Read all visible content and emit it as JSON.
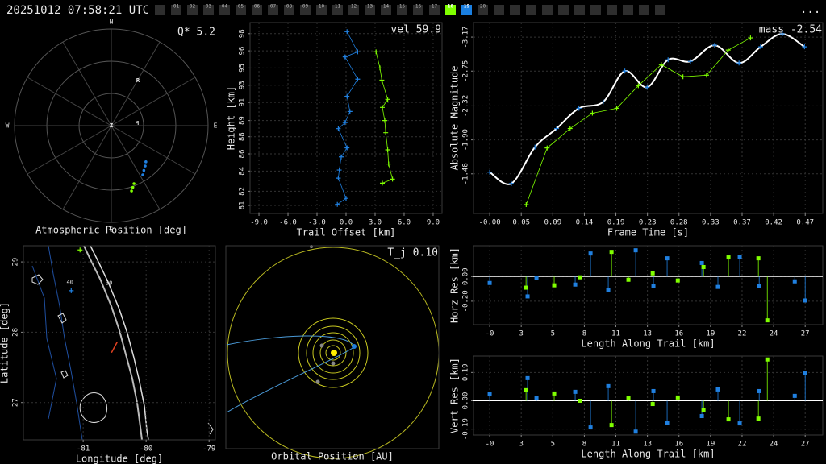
{
  "header": {
    "timestamp": "20251012 07:58:21 UTC",
    "frames": [
      "01",
      "02",
      "03",
      "04",
      "05",
      "06",
      "07",
      "08",
      "09",
      "10",
      "11",
      "12",
      "13",
      "14",
      "15",
      "16",
      "17",
      "18",
      "19",
      "20"
    ],
    "empty_before": 1,
    "empty_after": 11,
    "active_index": 17,
    "active_color": "#80ff00",
    "selected_index": 18,
    "selected_color": "#1a7fe0",
    "menu": "..."
  },
  "chart_data": [
    {
      "type": "polar",
      "title": "Atmospheric Position [deg]",
      "annotation": "Q*  5.2",
      "rlim": [
        0,
        90
      ],
      "rings": [
        30,
        60,
        90
      ],
      "spokes": 12,
      "cardinals": [
        "N",
        "E",
        "S",
        "W"
      ],
      "markers": [
        {
          "label": "Z",
          "az": 0,
          "zd": 0
        },
        {
          "label": "R",
          "az": 30.5,
          "zd": 48.7
        },
        {
          "label": "M",
          "az": 84.6,
          "zd": 24
        }
      ],
      "series": [
        {
          "color": "#2080e0",
          "az": [
            136.3,
            140,
            144,
            147.4
          ],
          "zd": [
            46.5,
            49,
            51.5,
            54.3
          ]
        },
        {
          "color": "#80ff00",
          "az": [
            158.7,
            160.8,
            162.8
          ],
          "zd": [
            58,
            60.8,
            63.6
          ]
        }
      ]
    },
    {
      "type": "line",
      "xlabel": "Trail Offset [km]",
      "ylabel": "Height [km]",
      "annotation": "vel 59.9",
      "xlim": [
        -9.92,
        9.92
      ],
      "ylim": [
        80.2,
        99.1
      ],
      "xticks": [
        {
          "value": -9,
          "label": "-9.0"
        },
        {
          "value": -6,
          "label": "-6.0"
        },
        {
          "value": -3,
          "label": "-3.0"
        },
        {
          "value": 0,
          "label": "0.0"
        },
        {
          "value": 3,
          "label": "3.0"
        },
        {
          "value": 6,
          "label": "6.0"
        },
        {
          "value": 9,
          "label": "9.0"
        }
      ],
      "yticks": [
        81,
        {
          "value": 82.4,
          "label": "82"
        },
        {
          "value": 84.4,
          "label": "84"
        },
        {
          "value": 86.1,
          "label": "86"
        },
        {
          "value": 87.8,
          "label": "88"
        },
        {
          "value": 89.4,
          "label": "89"
        },
        {
          "value": 91.2,
          "label": "91"
        },
        {
          "value": 92.9,
          "label": "93"
        },
        {
          "value": 94.6,
          "label": "95"
        },
        {
          "value": 96.3,
          "label": "96"
        },
        98
      ],
      "grid": true,
      "series": [
        {
          "color": "#2080e0",
          "line": true,
          "x": [
            0.1,
            1.2,
            -0.1,
            1.2,
            0.1,
            0.4,
            -0.1,
            -0.8,
            0.1,
            -0.5,
            -0.7,
            -0.8,
            0.0,
            -0.9
          ],
          "y": [
            98.2,
            96.2,
            95.7,
            93.5,
            91.8,
            90.3,
            89.2,
            88.6,
            86.7,
            85.8,
            84.5,
            83.7,
            81.7,
            81.1
          ]
        },
        {
          "color": "#80ff00",
          "line": true,
          "x": [
            3.1,
            3.5,
            3.7,
            4.3,
            3.75,
            4.0,
            4.1,
            4.3,
            4.4,
            4.8,
            3.75
          ],
          "y": [
            96.2,
            94.6,
            93.4,
            91.5,
            90.7,
            89.4,
            88.2,
            86.5,
            85.1,
            83.6,
            83.2
          ]
        }
      ]
    },
    {
      "type": "line",
      "xlabel": "Frame Time [s]",
      "ylabel": "Absolute Magnitude",
      "annotation": "mass -2.54",
      "xlim": [
        -0.024,
        0.493
      ],
      "ylim": [
        -0.99,
        -3.35
      ],
      "xticks": [
        {
          "value": 0,
          "label": "-0.00"
        },
        {
          "value": 0.0467,
          "label": "0.05"
        },
        {
          "value": 0.0934,
          "label": "0.09"
        },
        {
          "value": 0.1401,
          "label": "0.14"
        },
        {
          "value": 0.1868,
          "label": "0.19"
        },
        {
          "value": 0.2335,
          "label": "0.23"
        },
        {
          "value": 0.2802,
          "label": "0.28"
        },
        {
          "value": 0.3269,
          "label": "0.33"
        },
        {
          "value": 0.3736,
          "label": "0.37"
        },
        {
          "value": 0.4203,
          "label": "0.42"
        },
        {
          "value": 0.467,
          "label": "0.47"
        }
      ],
      "yticks": [
        -1.48,
        {
          "value": -1.9,
          "label": "-1.90"
        },
        -2.32,
        -2.75,
        -3.17
      ],
      "grid": true,
      "series": [
        {
          "color": "#2080e0",
          "line": false,
          "fit_color": "#ffffff",
          "x": [
            0,
            0.032,
            0.067,
            0.099,
            0.132,
            0.168,
            0.2,
            0.233,
            0.264,
            0.297,
            0.333,
            0.369,
            0.401,
            0.433,
            0.466
          ],
          "y": [
            -1.5,
            -1.36,
            -1.81,
            -2.04,
            -2.29,
            -2.37,
            -2.75,
            -2.55,
            -2.89,
            -2.87,
            -3.07,
            -2.85,
            -3.05,
            -3.21,
            -3.05
          ]
        },
        {
          "color": "#80ff00",
          "line": true,
          "x": [
            0.054,
            0.085,
            0.119,
            0.152,
            0.188,
            0.22,
            0.254,
            0.286,
            0.321,
            0.353,
            0.386
          ],
          "y": [
            -1.1,
            -1.8,
            -2.04,
            -2.23,
            -2.29,
            -2.57,
            -2.83,
            -2.68,
            -2.7,
            -3.01,
            -3.16
          ]
        }
      ]
    },
    {
      "type": "map",
      "xlabel": "Longitude [deg]",
      "ylabel": "Latitude [deg]",
      "xlim": [
        -81.95,
        -78.9
      ],
      "ylim": [
        26.47,
        29.23
      ],
      "xticks": [
        -81,
        -80,
        -79
      ],
      "yticks": [
        27,
        28,
        29
      ],
      "grid": true,
      "contour_labels": [
        {
          "text": "40",
          "lon": -81.21,
          "lat": 28.71
        },
        {
          "text": "30",
          "lon": -80.59,
          "lat": 28.7
        }
      ],
      "series": [
        {
          "color": "#80ff00",
          "marker": "plus",
          "lon": [
            -81.05
          ],
          "lat": [
            29.17
          ]
        },
        {
          "color": "#2080e0",
          "marker": "plus",
          "lon": [
            -81.19
          ],
          "lat": [
            28.59
          ]
        },
        {
          "color": "#e04020",
          "marker": "line",
          "lon": [
            -80.55,
            -80.46
          ],
          "lat": [
            27.71,
            27.86
          ]
        }
      ]
    },
    {
      "type": "diagram",
      "xlabel": "Orbital Position [AU]",
      "annotation": "T_j 0.10"
    },
    {
      "type": "stem",
      "xlabel": "Length Along Trail [km]",
      "ylabel": "Horz Res [km]",
      "xlim": [
        -1.38,
        28.4
      ],
      "ylim": [
        -0.39,
        0.25
      ],
      "xticks": [
        {
          "value": 0,
          "label": "-0"
        },
        {
          "value": 2.69,
          "label": "3"
        },
        {
          "value": 5.38,
          "label": "5"
        },
        {
          "value": 8.07,
          "label": "8"
        },
        {
          "value": 10.76,
          "label": "11"
        },
        {
          "value": 13.45,
          "label": "13"
        },
        {
          "value": 16.14,
          "label": "16"
        },
        {
          "value": 18.83,
          "label": "19"
        },
        {
          "value": 21.52,
          "label": "22"
        },
        {
          "value": 24.21,
          "label": "24"
        },
        {
          "value": 26.9,
          "label": "27"
        }
      ],
      "yticks": [
        {
          "value": -0.2,
          "label": "-0.20"
        },
        {
          "value": 0,
          "label": "0.00"
        }
      ],
      "grid": true,
      "series": [
        {
          "color": "#2080e0",
          "x": [
            0,
            3.23,
            3.99,
            7.29,
            8.6,
            10.11,
            12.45,
            13.96,
            15.13,
            18.09,
            19.46,
            21.32,
            22.98,
            26.01,
            26.9
          ],
          "y": [
            -0.052,
            -0.161,
            -0.013,
            -0.065,
            0.187,
            -0.11,
            0.213,
            -0.077,
            0.148,
            0.11,
            -0.084,
            0.161,
            -0.077,
            -0.039,
            -0.194
          ]
        },
        {
          "color": "#80ff00",
          "x": [
            3.1,
            5.5,
            7.71,
            10.39,
            11.83,
            13.9,
            16.04,
            18.23,
            20.36,
            22.91,
            23.67
          ],
          "y": [
            -0.09,
            -0.071,
            -0.006,
            0.2,
            -0.026,
            0.026,
            -0.032,
            0.077,
            0.155,
            0.148,
            -0.355
          ]
        }
      ]
    },
    {
      "type": "stem",
      "xlabel": "Length Along Trail [km]",
      "ylabel": "Vert Res [km]",
      "xlim": [
        -1.38,
        28.4
      ],
      "ylim": [
        -0.23,
        0.3
      ],
      "xticks": [
        {
          "value": 0,
          "label": "-0"
        },
        {
          "value": 2.69,
          "label": "3"
        },
        {
          "value": 5.38,
          "label": "5"
        },
        {
          "value": 8.07,
          "label": "8"
        },
        {
          "value": 10.76,
          "label": "11"
        },
        {
          "value": 13.45,
          "label": "13"
        },
        {
          "value": 16.14,
          "label": "16"
        },
        {
          "value": 18.83,
          "label": "19"
        },
        {
          "value": 21.52,
          "label": "22"
        },
        {
          "value": 24.21,
          "label": "24"
        },
        {
          "value": 26.9,
          "label": "27"
        }
      ],
      "yticks": [
        -0.19,
        {
          "value": 0,
          "label": "0.00"
        },
        0.19
      ],
      "grid": true,
      "series": [
        {
          "color": "#2080e0",
          "x": [
            0,
            3.23,
            3.99,
            7.29,
            8.6,
            10.11,
            12.45,
            13.96,
            15.13,
            18.09,
            19.46,
            21.32,
            22.98,
            26.01,
            26.9
          ],
          "y": [
            0.043,
            0.152,
            0.016,
            0.06,
            -0.179,
            0.098,
            -0.207,
            0.065,
            -0.147,
            -0.103,
            0.076,
            -0.152,
            0.065,
            0.033,
            0.185
          ]
        },
        {
          "color": "#80ff00",
          "x": [
            3.1,
            5.5,
            7.71,
            10.39,
            11.83,
            13.9,
            16.04,
            18.23,
            20.36,
            22.91,
            23.67
          ],
          "y": [
            0.071,
            0.049,
            0.0,
            -0.163,
            0.016,
            -0.022,
            0.022,
            -0.065,
            -0.125,
            -0.12,
            0.277
          ]
        }
      ]
    }
  ]
}
